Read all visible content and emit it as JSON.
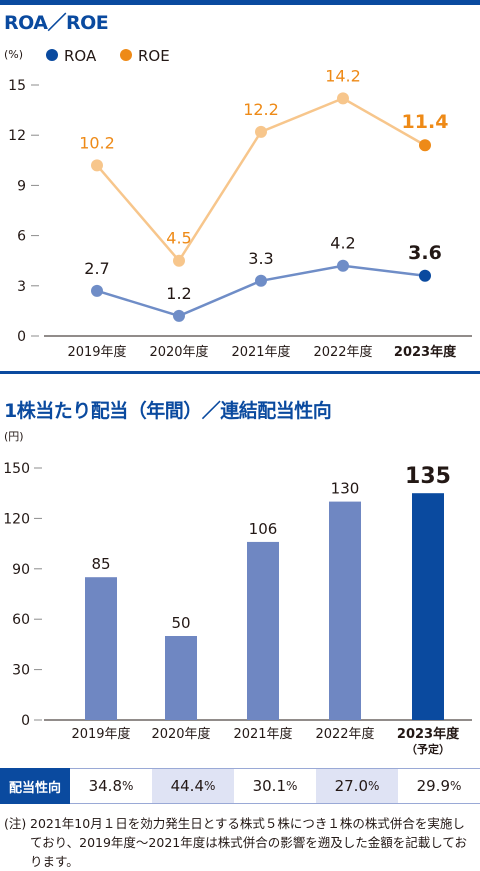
{
  "roa_roe": {
    "title": "ROA／ROE",
    "unit": "(%)",
    "chart_data": {
      "type": "line",
      "categories": [
        "2019年度",
        "2020年度",
        "2021年度",
        "2022年度",
        "2023年度"
      ],
      "series": [
        {
          "name": "ROA",
          "values": [
            2.7,
            1.2,
            3.3,
            4.2,
            3.6
          ],
          "color": "#0a4a9f",
          "line_color": "#6f8dc7"
        },
        {
          "name": "ROE",
          "values": [
            10.2,
            4.5,
            12.2,
            14.2,
            11.4
          ],
          "color": "#ee8a17",
          "line_color": "#f7c68c"
        }
      ],
      "value_labels": {
        "ROA": [
          "2.7",
          "1.2",
          "3.3",
          "4.2",
          "3.6"
        ],
        "ROE": [
          "10.2",
          "4.5",
          "12.2",
          "14.2",
          "11.4"
        ]
      },
      "y_ticks": [
        "0",
        "3",
        "6",
        "9",
        "12",
        "15"
      ],
      "ylim": [
        0,
        15
      ],
      "legend": "top-left",
      "highlight_last": true
    }
  },
  "dividend": {
    "title": "1株当たり配当（年間）／連結配当性向",
    "unit": "(円)",
    "chart_data": {
      "type": "bar",
      "categories": [
        "2019年度",
        "2020年度",
        "2021年度",
        "2022年度",
        "2023年度"
      ],
      "last_category_note": "（予定）",
      "values": [
        85,
        50,
        106,
        130,
        135
      ],
      "value_labels": [
        "85",
        "50",
        "106",
        "130",
        "135"
      ],
      "y_ticks": [
        "0",
        "30",
        "60",
        "90",
        "120",
        "150"
      ],
      "ylim": [
        0,
        150
      ],
      "bar_color": "#6f87c2",
      "highlight_color": "#0a4a9f"
    }
  },
  "payout": {
    "label": "配当性向",
    "values": [
      "34.8",
      "44.4",
      "30.1",
      "27.0",
      "29.9"
    ],
    "unit": "%"
  },
  "note": {
    "prefix": "(注)",
    "text": "2021年10月１日を効力発生日とする株式５株につき１株の株式併合を実施しており、2019年度～2021年度は株式併合の影響を遡及した金額を記載しております。"
  }
}
